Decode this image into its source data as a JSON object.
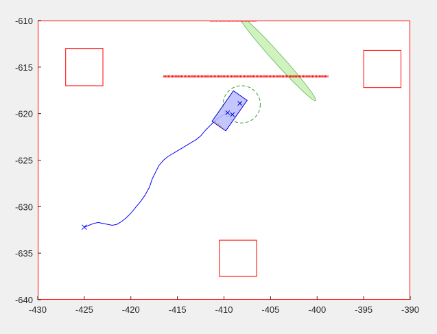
{
  "chart_data": {
    "type": "scatter",
    "xlim": [
      -430,
      -390
    ],
    "ylim": [
      -640,
      -610
    ],
    "xticks": [
      -430,
      -425,
      -420,
      -415,
      -410,
      -405,
      -400,
      -395,
      -390
    ],
    "yticks": [
      -610,
      -615,
      -620,
      -625,
      -630,
      -635,
      -640
    ],
    "xtick_labels": [
      "-430",
      "-425",
      "-420",
      "-415",
      "-410",
      "-405",
      "-400",
      "-395",
      "-390"
    ],
    "ytick_labels": [
      "-610",
      "-615",
      "-620",
      "-625",
      "-630",
      "-635",
      "-640"
    ],
    "grid": false,
    "colors": {
      "axes_box": "#ff0000",
      "trajectory": "#0000ff",
      "vehicle_fill": "#b8bcff",
      "vehicle_edge": "#0000cc",
      "obstacle": "#ff0000",
      "ellipse_fill": "#c8f0b4",
      "ellipse_edge": "#5cb85c",
      "circle": "#33a02c"
    },
    "obstacle_squares": [
      {
        "x": [
          -427,
          -423
        ],
        "y": [
          -617,
          -613
        ]
      },
      {
        "x": [
          -395,
          -391
        ],
        "y": [
          -617.2,
          -613.2
        ]
      },
      {
        "x": [
          -410.5,
          -406.5
        ],
        "y": [
          -637.5,
          -633.6
        ]
      }
    ],
    "obstacle_lines": [
      {
        "x": [
          -411.5,
          -406.5
        ],
        "y": -610
      },
      {
        "x": [
          -416.5,
          -398.8
        ],
        "y": -616
      }
    ],
    "trajectory": {
      "x": [
        -425,
        -424.5,
        -424,
        -423.5,
        -423,
        -422.5,
        -422,
        -421.5,
        -421,
        -420.5,
        -420,
        -419.5,
        -419,
        -418.5,
        -418,
        -417.7,
        -417.3,
        -417,
        -416.5,
        -416,
        -415.5,
        -415,
        -414.5,
        -414,
        -413.5,
        -413,
        -412.5,
        -412,
        -411.5,
        -411,
        -410.5,
        -410,
        -409.5
      ],
      "y": [
        -632.2,
        -632,
        -631.8,
        -631.7,
        -631.8,
        -631.9,
        -632,
        -631.9,
        -631.6,
        -631.2,
        -630.7,
        -630.1,
        -629.5,
        -628.8,
        -627.9,
        -627,
        -626.2,
        -625.6,
        -625,
        -624.6,
        -624.3,
        -624,
        -623.7,
        -623.4,
        -623.1,
        -622.8,
        -622.4,
        -621.8,
        -621.3,
        -620.8,
        -620.4,
        -620.1,
        -619.8
      ]
    },
    "start_marker": {
      "x": -425,
      "y": -632.2
    },
    "vehicle": {
      "center": [
        -409.4,
        -619.7
      ],
      "length": 4,
      "width": 1.8,
      "heading_deg": 55
    },
    "vehicle_markers": [
      {
        "x": -409.6,
        "y": -619.9
      },
      {
        "x": -409.1,
        "y": -620.1
      },
      {
        "x": -408.3,
        "y": -618.9
      }
    ],
    "ellipse": {
      "center": [
        -404.3,
        -614
      ],
      "semi_major": 6.2,
      "semi_minor": 0.5,
      "angle_deg": -48
    },
    "safety_circle": {
      "center": [
        -408.1,
        -619
      ],
      "radius": 2
    },
    "heading_arc": {
      "center": [
        -409.4,
        -619.7
      ],
      "radius": 2,
      "start_deg": 215,
      "end_deg": 245
    }
  }
}
